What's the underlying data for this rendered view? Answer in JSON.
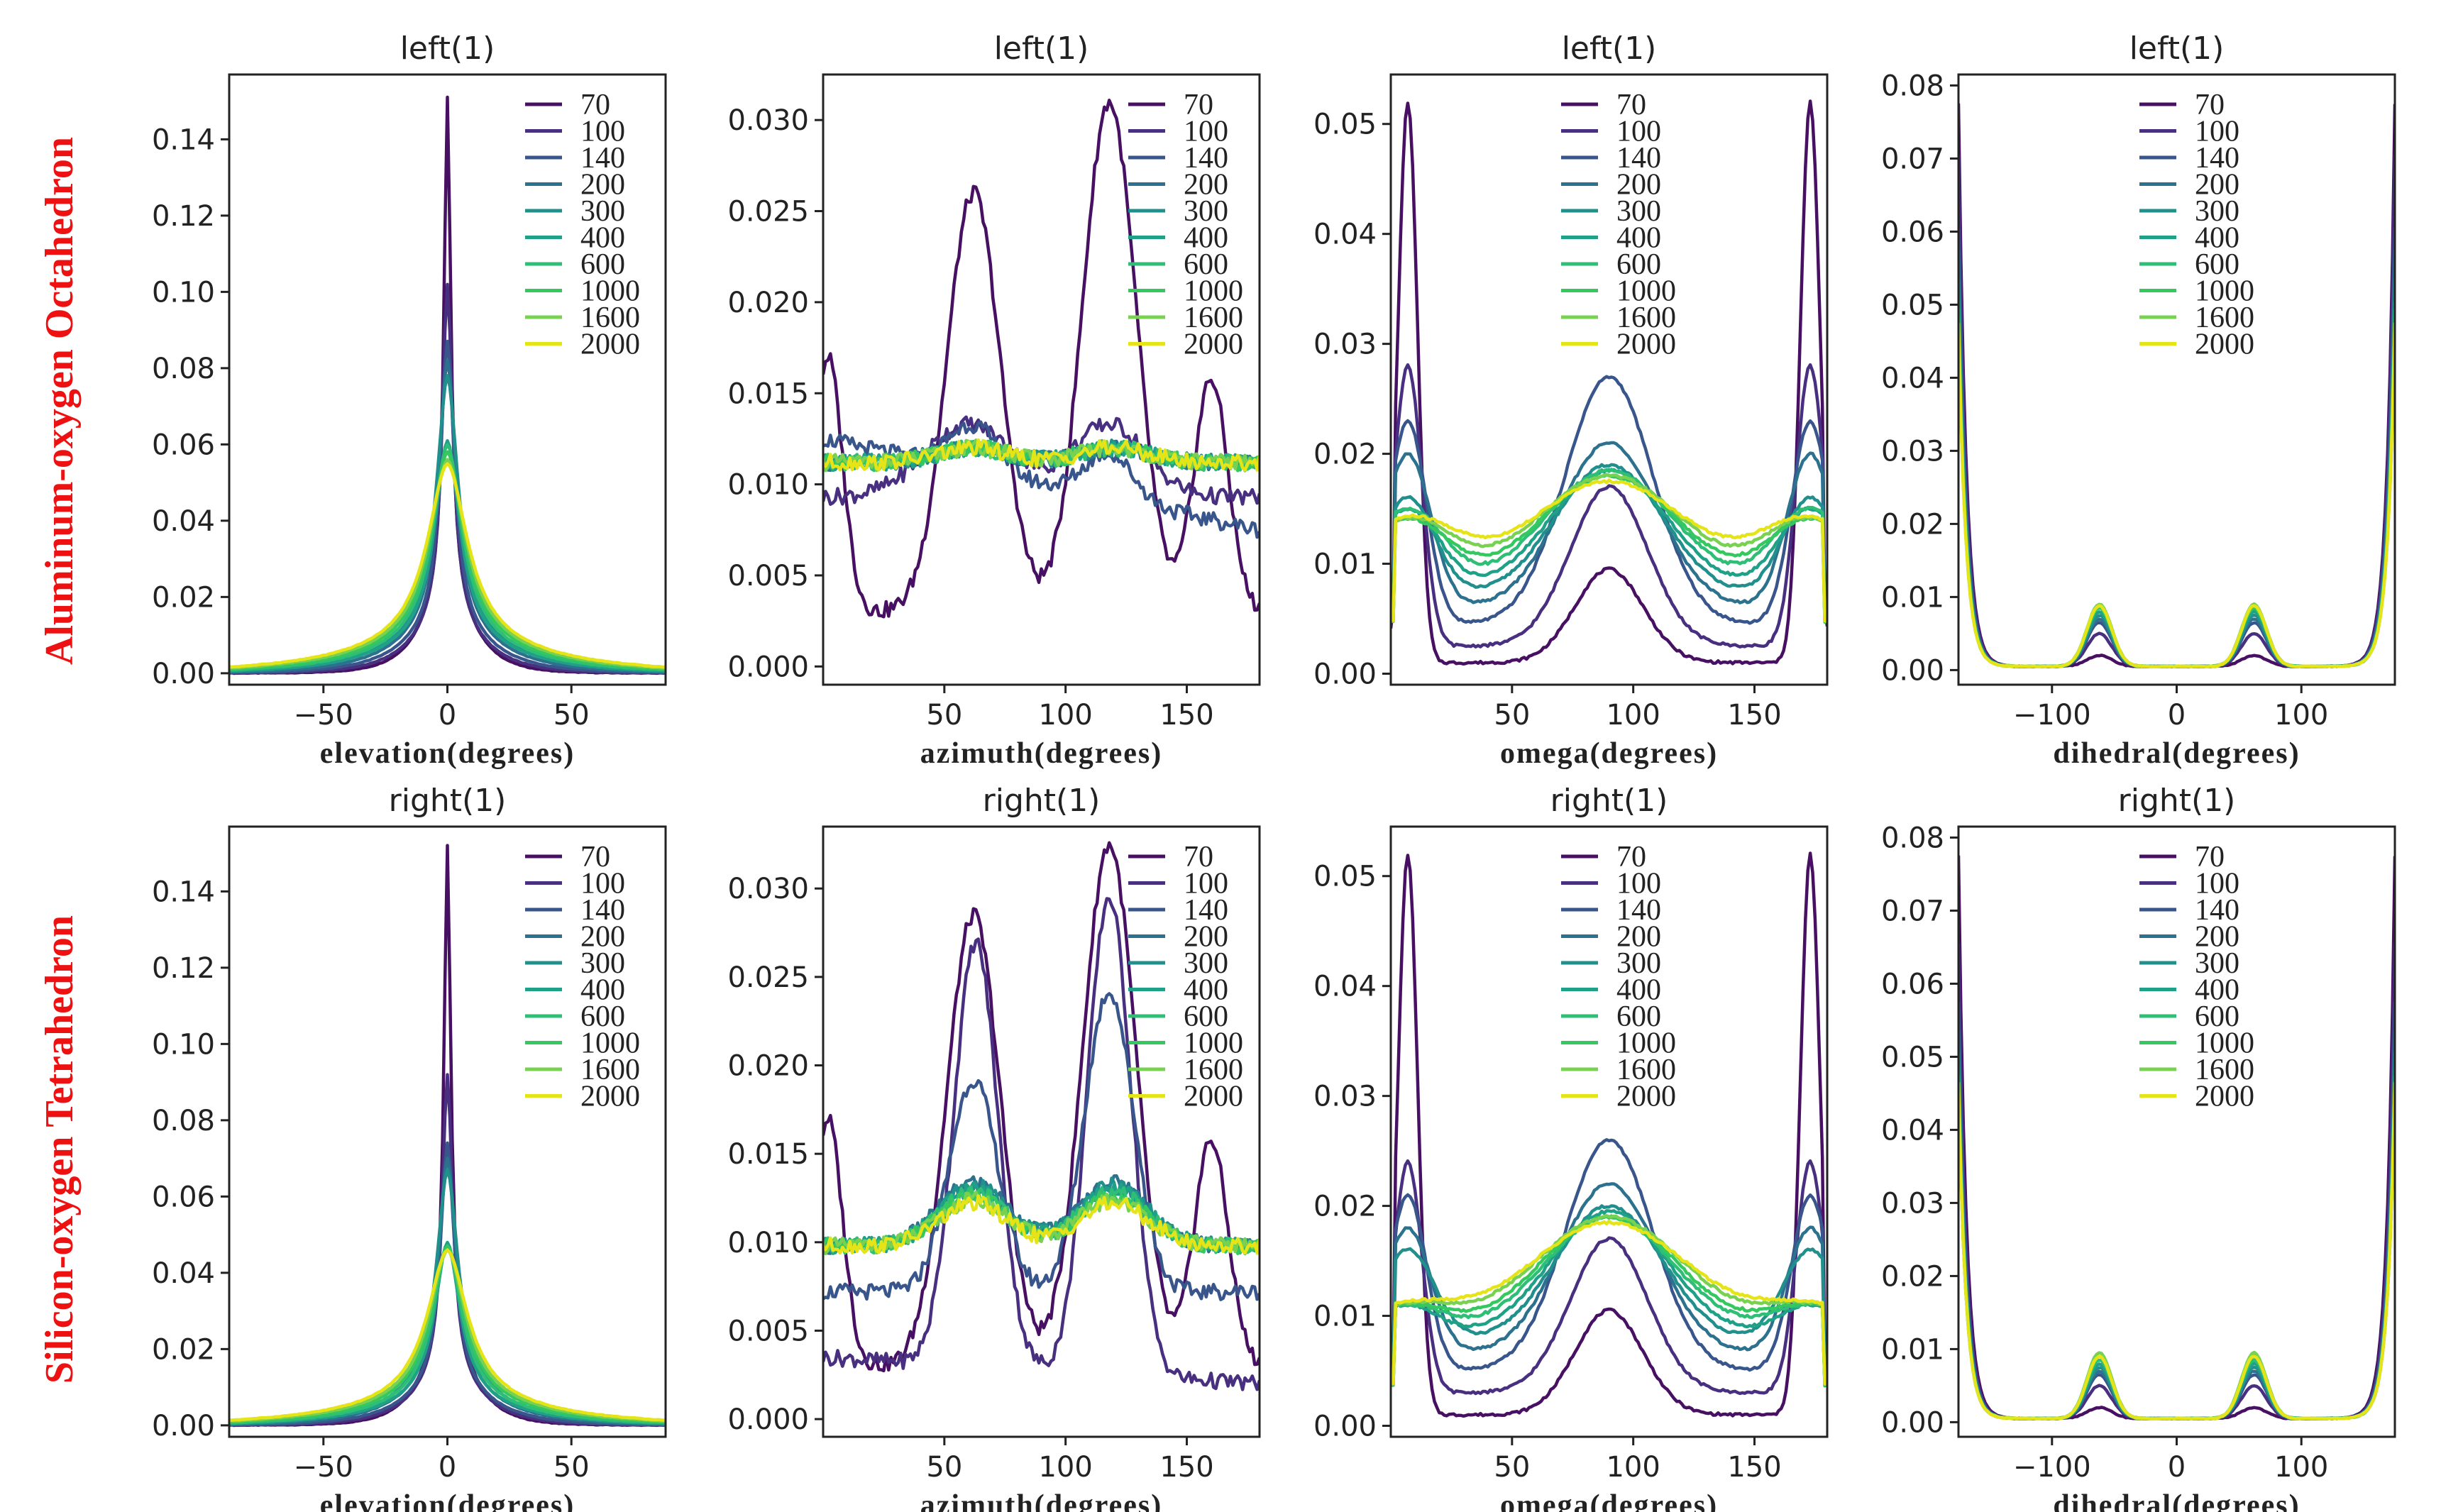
{
  "row_labels": [
    "Aluminum-oxygen Octahedron",
    "Silicon-oxygen Tetrahedron"
  ],
  "legend": {
    "entries": [
      "70",
      "100",
      "140",
      "200",
      "300",
      "400",
      "600",
      "1000",
      "1600",
      "2000"
    ],
    "colors": [
      "#471063",
      "#482f7f",
      "#39568c",
      "#2c728e",
      "#21908d",
      "#1fa187",
      "#2ebe75",
      "#35c85f",
      "#79d151",
      "#e5e419"
    ]
  },
  "chart_data": [
    {
      "type": "line",
      "row": 0,
      "col": 0,
      "title": "left(1)",
      "xlabel": "elevation(degrees)",
      "kind": "elevation",
      "xlim": [
        -88,
        88
      ],
      "ylim": [
        -0.003,
        0.157
      ],
      "xticks": [
        -50,
        0,
        50
      ],
      "yticks": [
        0,
        0.02,
        0.04,
        0.06,
        0.08,
        0.1,
        0.12,
        0.14
      ],
      "ytick_labels": [
        "0.00",
        "0.02",
        "0.04",
        "0.06",
        "0.08",
        "0.10",
        "0.12",
        "0.14"
      ],
      "peaks": [
        0.151,
        0.102,
        0.087,
        0.082,
        0.078,
        0.061,
        0.06,
        0.058,
        0.056,
        0.055
      ]
    },
    {
      "type": "line",
      "row": 0,
      "col": 1,
      "title": "left(1)",
      "xlabel": "azimuth(degrees)",
      "kind": "azimuth_left",
      "xlim": [
        0,
        180
      ],
      "ylim": [
        -0.001,
        0.0325
      ],
      "xticks": [
        50,
        100,
        150
      ],
      "yticks": [
        0,
        0.005,
        0.01,
        0.015,
        0.02,
        0.025,
        0.03
      ],
      "ytick_labels": [
        "0.000",
        "0.005",
        "0.010",
        "0.015",
        "0.020",
        "0.025",
        "0.030"
      ],
      "peak_values": [
        0.026,
        0.031
      ],
      "baseline": 0.0112
    },
    {
      "type": "line",
      "row": 0,
      "col": 2,
      "title": "left(1)",
      "xlabel": "omega(degrees)",
      "kind": "omega",
      "xlim": [
        0,
        180
      ],
      "ylim": [
        -0.001,
        0.0545
      ],
      "xticks": [
        50,
        100,
        150
      ],
      "yticks": [
        0,
        0.01,
        0.02,
        0.03,
        0.04,
        0.05
      ],
      "ytick_labels": [
        "0.00",
        "0.01",
        "0.02",
        "0.03",
        "0.04",
        "0.05"
      ],
      "edge_peaks": [
        0.052,
        0.028,
        0.023,
        0.02,
        0.016,
        0.015,
        0.015,
        0.014,
        0.014,
        0.014
      ],
      "mid_peaks": [
        0.0095,
        0.017,
        0.027,
        0.021,
        0.019,
        0.0185,
        0.0185,
        0.018,
        0.018,
        0.0175
      ],
      "valleys": [
        0.001,
        0.0025,
        0.0045,
        0.006,
        0.007,
        0.0075,
        0.0078,
        0.008,
        0.008,
        0.0082
      ]
    },
    {
      "type": "line",
      "row": 0,
      "col": 3,
      "title": "left(1)",
      "xlabel": "dihedral(degrees)",
      "kind": "dihedral",
      "xlim": [
        -175,
        175
      ],
      "ylim": [
        -0.002,
        0.0815
      ],
      "xticks": [
        -100,
        0,
        100
      ],
      "yticks": [
        0,
        0.01,
        0.02,
        0.03,
        0.04,
        0.05,
        0.06,
        0.07,
        0.08
      ],
      "ytick_labels": [
        "0.00",
        "0.01",
        "0.02",
        "0.03",
        "0.04",
        "0.05",
        "0.06",
        "0.07",
        "0.08"
      ],
      "edge_peaks": [
        0.077,
        0.07,
        0.06,
        0.057,
        0.053,
        0.05,
        0.049,
        0.048,
        0.047,
        0.047
      ],
      "bump_peaks": [
        0.002,
        0.005,
        0.0065,
        0.007,
        0.0075,
        0.008,
        0.0085,
        0.0085,
        0.009,
        0.0088
      ]
    },
    {
      "type": "line",
      "row": 1,
      "col": 0,
      "title": "right(1)",
      "xlabel": "elevation(degrees)",
      "kind": "elevation",
      "xlim": [
        -88,
        88
      ],
      "ylim": [
        -0.003,
        0.157
      ],
      "xticks": [
        -50,
        0,
        50
      ],
      "yticks": [
        0,
        0.02,
        0.04,
        0.06,
        0.08,
        0.1,
        0.12,
        0.14
      ],
      "ytick_labels": [
        "0.00",
        "0.02",
        "0.04",
        "0.06",
        "0.08",
        "0.10",
        "0.12",
        "0.14"
      ],
      "peaks": [
        0.152,
        0.092,
        0.074,
        0.07,
        0.067,
        0.048,
        0.047,
        0.047,
        0.046,
        0.046
      ]
    },
    {
      "type": "line",
      "row": 1,
      "col": 1,
      "title": "right(1)",
      "xlabel": "azimuth(degrees)",
      "kind": "azimuth_right",
      "xlim": [
        0,
        180
      ],
      "ylim": [
        -0.001,
        0.0335
      ],
      "xticks": [
        50,
        100,
        150
      ],
      "yticks": [
        0,
        0.005,
        0.01,
        0.015,
        0.02,
        0.025,
        0.03
      ],
      "ytick_labels": [
        "0.000",
        "0.005",
        "0.010",
        "0.015",
        "0.020",
        "0.025",
        "0.030"
      ],
      "peak_values": [
        0.0285,
        0.0325
      ],
      "baseline": 0.0098
    },
    {
      "type": "line",
      "row": 1,
      "col": 2,
      "title": "right(1)",
      "xlabel": "omega(degrees)",
      "kind": "omega",
      "xlim": [
        0,
        180
      ],
      "ylim": [
        -0.001,
        0.0545
      ],
      "xticks": [
        50,
        100,
        150
      ],
      "yticks": [
        0,
        0.01,
        0.02,
        0.03,
        0.04,
        0.05
      ],
      "ytick_labels": [
        "0.00",
        "0.01",
        "0.02",
        "0.03",
        "0.04",
        "0.05"
      ],
      "edge_peaks": [
        0.052,
        0.024,
        0.021,
        0.018,
        0.016,
        0.011,
        0.011,
        0.011,
        0.011,
        0.011
      ],
      "mid_peaks": [
        0.0105,
        0.017,
        0.026,
        0.022,
        0.02,
        0.0195,
        0.019,
        0.019,
        0.019,
        0.0185
      ],
      "valleys": [
        0.001,
        0.003,
        0.005,
        0.0065,
        0.0075,
        0.008,
        0.0085,
        0.0085,
        0.0088,
        0.009
      ]
    },
    {
      "type": "line",
      "row": 1,
      "col": 3,
      "title": "right(1)",
      "xlabel": "dihedral(degrees)",
      "kind": "dihedral",
      "xlim": [
        -175,
        175
      ],
      "ylim": [
        -0.002,
        0.0815
      ],
      "xticks": [
        -100,
        0,
        100
      ],
      "yticks": [
        0,
        0.01,
        0.02,
        0.03,
        0.04,
        0.05,
        0.06,
        0.07,
        0.08
      ],
      "ytick_labels": [
        "0.00",
        "0.01",
        "0.02",
        "0.03",
        "0.04",
        "0.05",
        "0.06",
        "0.07",
        "0.08"
      ],
      "edge_peaks": [
        0.077,
        0.065,
        0.057,
        0.053,
        0.05,
        0.048,
        0.047,
        0.046,
        0.046,
        0.046
      ],
      "bump_peaks": [
        0.002,
        0.005,
        0.0065,
        0.007,
        0.0075,
        0.008,
        0.0085,
        0.009,
        0.0095,
        0.009
      ]
    }
  ]
}
